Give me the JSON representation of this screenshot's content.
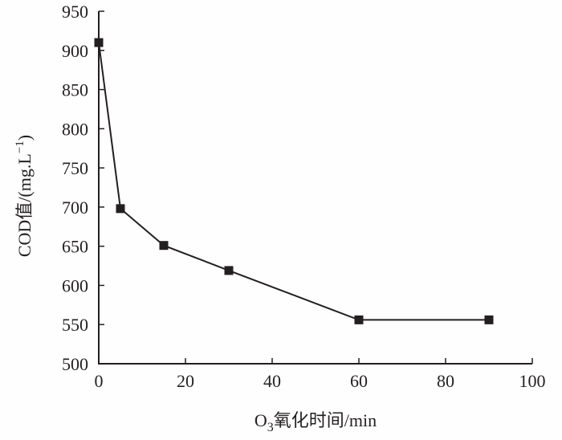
{
  "chart_data": {
    "type": "line",
    "title": "",
    "xlabel": {
      "prefix": "O",
      "subscript": "3",
      "suffix": "氧化时间/min"
    },
    "ylabel": {
      "main": "COD值/(mg.L",
      "superscript": "−1",
      "close": ")"
    },
    "xlim": [
      0,
      100
    ],
    "ylim": [
      500,
      950
    ],
    "xticks": [
      0,
      20,
      40,
      60,
      80,
      100
    ],
    "yticks": [
      500,
      550,
      600,
      650,
      700,
      750,
      800,
      850,
      900,
      950
    ],
    "grid": false,
    "series": [
      {
        "x": [
          0,
          5,
          15,
          30,
          60,
          90
        ],
        "y": [
          910,
          698,
          651,
          619,
          556,
          556
        ],
        "marker": "square",
        "color": "#231f20"
      }
    ]
  }
}
